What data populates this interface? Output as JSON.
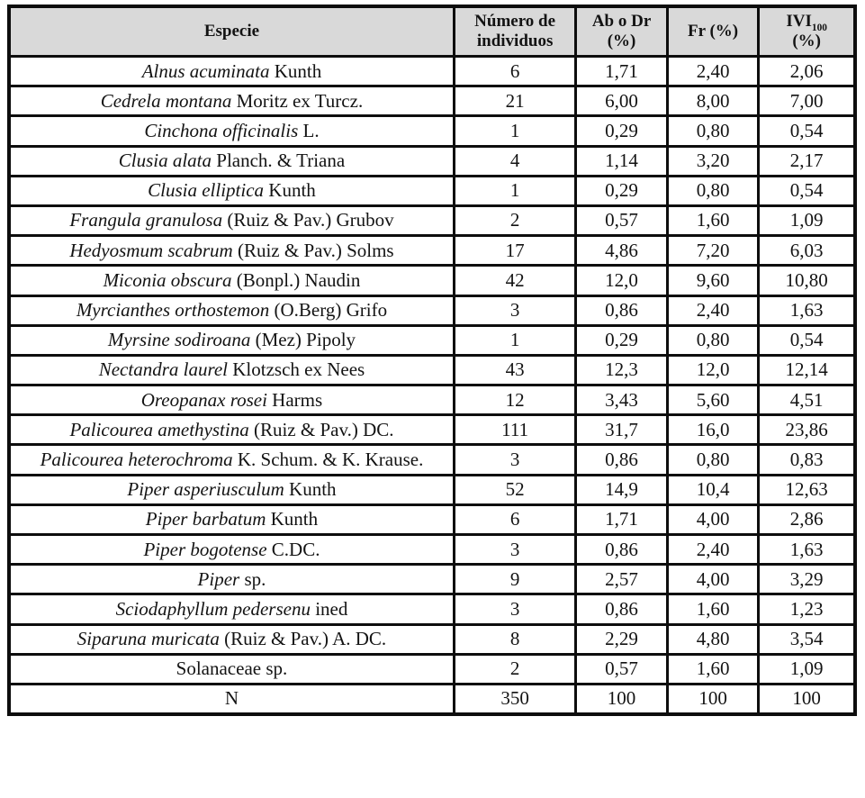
{
  "table": {
    "header": {
      "especie": "Especie",
      "individuos_line1": "Número de",
      "individuos_line2": "individuos",
      "ab_line1": "Ab o Dr",
      "ab_line2": "(%)",
      "fr": "Fr (%)",
      "ivi_base": "IVI",
      "ivi_sub": "100",
      "ivi_line2": "(%)"
    },
    "rows": [
      {
        "name_italic": "Alnus acuminata",
        "name_regular": "Kunth",
        "individuos": "6",
        "ab": "1,71",
        "fr": "2,40",
        "ivi": "2,06"
      },
      {
        "name_italic": "Cedrela montana",
        "name_regular": "Moritz ex Turcz.",
        "individuos": "21",
        "ab": "6,00",
        "fr": "8,00",
        "ivi": "7,00"
      },
      {
        "name_italic": "Cinchona officinalis",
        "name_regular": "L.",
        "individuos": "1",
        "ab": "0,29",
        "fr": "0,80",
        "ivi": "0,54"
      },
      {
        "name_italic": "Clusia alata",
        "name_regular": "Planch. & Triana",
        "individuos": "4",
        "ab": "1,14",
        "fr": "3,20",
        "ivi": "2,17"
      },
      {
        "name_italic": "Clusia elliptica",
        "name_regular": "Kunth",
        "individuos": "1",
        "ab": "0,29",
        "fr": "0,80",
        "ivi": "0,54"
      },
      {
        "name_italic": "Frangula granulosa",
        "name_regular": "(Ruiz & Pav.) Grubov",
        "individuos": "2",
        "ab": "0,57",
        "fr": "1,60",
        "ivi": "1,09"
      },
      {
        "name_italic": "Hedyosmum scabrum",
        "name_regular": "(Ruiz & Pav.) Solms",
        "individuos": "17",
        "ab": "4,86",
        "fr": "7,20",
        "ivi": "6,03"
      },
      {
        "name_italic": "Miconia obscura",
        "name_regular": "(Bonpl.) Naudin",
        "individuos": "42",
        "ab": "12,0",
        "fr": "9,60",
        "ivi": "10,80"
      },
      {
        "name_italic": "Myrcianthes orthostemon",
        "name_regular": "(O.Berg) Grifo",
        "individuos": "3",
        "ab": "0,86",
        "fr": "2,40",
        "ivi": "1,63"
      },
      {
        "name_italic": "Myrsine sodiroana",
        "name_regular": "(Mez) Pipoly",
        "individuos": "1",
        "ab": "0,29",
        "fr": "0,80",
        "ivi": "0,54"
      },
      {
        "name_italic": "Nectandra laurel",
        "name_regular": "Klotzsch ex Nees",
        "individuos": "43",
        "ab": "12,3",
        "fr": "12,0",
        "ivi": "12,14"
      },
      {
        "name_italic": "Oreopanax rosei",
        "name_regular": "Harms",
        "individuos": "12",
        "ab": "3,43",
        "fr": "5,60",
        "ivi": "4,51"
      },
      {
        "name_italic": "Palicourea amethystina",
        "name_regular": "(Ruiz & Pav.) DC.",
        "individuos": "111",
        "ab": "31,7",
        "fr": "16,0",
        "ivi": "23,86"
      },
      {
        "name_italic": "Palicourea heterochroma",
        "name_regular": "K. Schum. & K. Krause.",
        "individuos": "3",
        "ab": "0,86",
        "fr": "0,80",
        "ivi": "0,83"
      },
      {
        "name_italic": "Piper asperiusculum",
        "name_regular": "Kunth",
        "individuos": "52",
        "ab": "14,9",
        "fr": "10,4",
        "ivi": "12,63"
      },
      {
        "name_italic": "Piper barbatum",
        "name_regular": "Kunth",
        "individuos": "6",
        "ab": "1,71",
        "fr": "4,00",
        "ivi": "2,86"
      },
      {
        "name_italic": "Piper bogotense",
        "name_regular": "C.DC.",
        "individuos": "3",
        "ab": "0,86",
        "fr": "2,40",
        "ivi": "1,63"
      },
      {
        "name_italic": "Piper",
        "name_regular": "sp.",
        "individuos": "9",
        "ab": "2,57",
        "fr": "4,00",
        "ivi": "3,29"
      },
      {
        "name_italic": "Sciodaphyllum pedersenu",
        "name_regular": "ined",
        "individuos": "3",
        "ab": "0,86",
        "fr": "1,60",
        "ivi": "1,23"
      },
      {
        "name_italic": "Siparuna muricata",
        "name_regular": "(Ruiz & Pav.) A. DC.",
        "individuos": "8",
        "ab": "2,29",
        "fr": "4,80",
        "ivi": "3,54"
      },
      {
        "name_italic": "",
        "name_regular": "Solanaceae sp.",
        "individuos": "2",
        "ab": "0,57",
        "fr": "1,60",
        "ivi": "1,09"
      },
      {
        "name_italic": "",
        "name_regular": "N",
        "individuos": "350",
        "ab": "100",
        "fr": "100",
        "ivi": "100"
      }
    ],
    "colors": {
      "header_background": "#d9d9d9",
      "border": "#0d0d0d",
      "text": "#131313"
    }
  }
}
